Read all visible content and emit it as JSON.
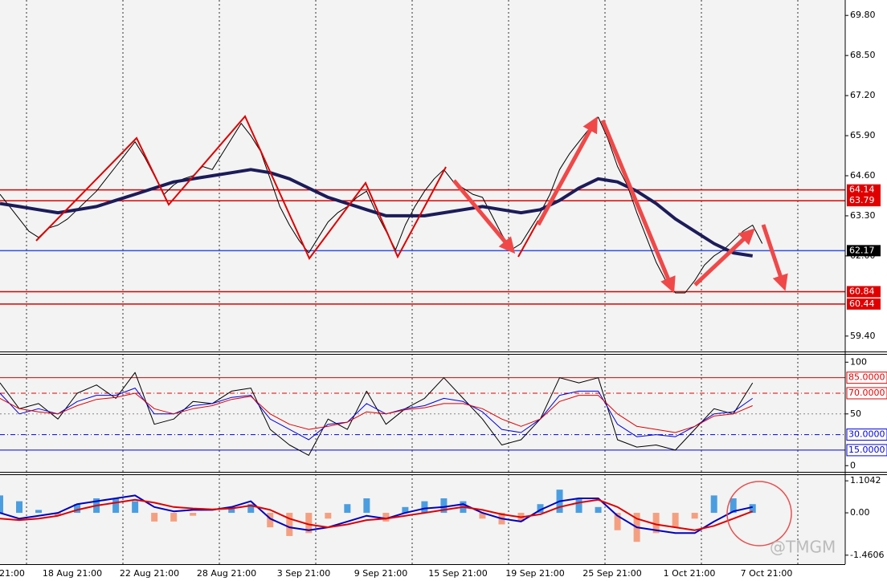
{
  "chart_data": [
    {
      "type": "line",
      "ylim": [
        58.9,
        70.3
      ],
      "xlim": [
        0,
        87.6
      ],
      "yticks": [
        {
          "value": 69.8,
          "label": "69.80"
        },
        {
          "value": 68.5,
          "label": "68.50"
        },
        {
          "value": 67.2,
          "label": "67.20"
        },
        {
          "value": 65.9,
          "label": "65.90"
        },
        {
          "value": 64.6,
          "label": "64.60"
        },
        {
          "value": 63.3,
          "label": "63.30"
        },
        {
          "value": 62,
          "label": "62.00"
        },
        {
          "value": 59.4,
          "label": "59.40"
        }
      ],
      "series": [
        {
          "color": "#000000",
          "width": 1,
          "x": [
            0,
            1,
            2,
            3,
            4,
            5,
            6,
            7,
            8,
            9,
            10,
            11,
            12,
            13,
            14,
            15,
            16,
            17,
            18,
            19,
            20,
            21,
            22,
            23,
            24,
            25,
            26,
            27,
            28,
            29,
            30,
            31,
            32,
            33,
            34,
            35,
            36,
            37,
            38,
            39,
            40,
            41,
            42,
            43,
            44,
            45,
            46,
            47,
            48,
            49,
            50,
            51,
            52,
            53,
            54,
            55,
            56,
            57,
            58,
            59,
            60,
            61,
            62,
            63,
            64,
            65,
            66,
            67,
            68,
            69,
            70,
            71,
            72,
            73,
            74,
            75,
            76,
            77,
            78,
            79
          ],
          "values": [
            64.0,
            63.6,
            63.2,
            62.8,
            62.6,
            62.9,
            63.0,
            63.2,
            63.5,
            63.8,
            64.1,
            64.5,
            64.9,
            65.3,
            65.7,
            65.2,
            64.6,
            64.0,
            64.3,
            64.5,
            64.6,
            64.9,
            64.8,
            65.3,
            65.8,
            66.3,
            65.9,
            65.4,
            64.5,
            63.6,
            63.0,
            62.5,
            62.1,
            62.6,
            63.1,
            63.4,
            63.6,
            63.9,
            64.1,
            63.4,
            62.8,
            62.2,
            63.0,
            63.6,
            64.1,
            64.5,
            64.8,
            64.4,
            64.2,
            64.0,
            63.9,
            63.3,
            62.7,
            62.2,
            62.4,
            62.9,
            63.4,
            64.0,
            64.8,
            65.3,
            65.7,
            66.1,
            66.5,
            65.8,
            64.9,
            64.3,
            63.4,
            62.6,
            61.8,
            61.2,
            60.8,
            60.8,
            61.2,
            61.7,
            62.0,
            62.2,
            62.5,
            62.8,
            63.0,
            62.4
          ]
        },
        {
          "color": "#1c1c5a",
          "width": 4,
          "x": [
            0,
            2,
            4,
            6,
            8,
            10,
            12,
            14,
            16,
            18,
            20,
            22,
            24,
            26,
            28,
            30,
            32,
            34,
            36,
            38,
            40,
            42,
            44,
            46,
            48,
            50,
            52,
            54,
            56,
            58,
            60,
            62,
            64,
            66,
            68,
            70,
            72,
            74,
            76,
            78
          ],
          "values": [
            63.7,
            63.6,
            63.5,
            63.4,
            63.5,
            63.6,
            63.8,
            64.0,
            64.2,
            64.4,
            64.5,
            64.6,
            64.7,
            64.8,
            64.7,
            64.5,
            64.2,
            63.9,
            63.7,
            63.5,
            63.3,
            63.3,
            63.3,
            63.4,
            63.5,
            63.6,
            63.5,
            63.4,
            63.5,
            63.8,
            64.2,
            64.5,
            64.4,
            64.1,
            63.7,
            63.2,
            62.8,
            62.4,
            62.1,
            62.0
          ]
        }
      ],
      "levels": [
        {
          "value": 64.14,
          "color": "#e00000",
          "box": "#e00000"
        },
        {
          "value": 63.79,
          "color": "#e00000",
          "box": "#e00000"
        },
        {
          "value": 62.17,
          "color": "#3050e0",
          "box": "#000000"
        },
        {
          "value": 60.84,
          "color": "#e00000",
          "box": "#e00000"
        },
        {
          "value": 60.44,
          "color": "#e00000",
          "box": "#e00000"
        }
      ]
    },
    {
      "type": "line",
      "ylim": [
        -6,
        108
      ],
      "xlim": [
        0,
        87.6
      ],
      "yticks": [
        100,
        50,
        0
      ],
      "x": [
        0,
        2,
        4,
        6,
        8,
        10,
        12,
        14,
        16,
        18,
        20,
        22,
        24,
        26,
        28,
        30,
        32,
        34,
        36,
        38,
        40,
        42,
        44,
        46,
        48,
        50,
        52,
        54,
        56,
        58,
        60,
        62,
        64,
        66,
        68,
        70,
        72,
        74,
        76,
        78
      ],
      "series": [
        {
          "color": "#000000",
          "width": 1,
          "values": [
            80,
            55,
            60,
            45,
            70,
            78,
            65,
            90,
            40,
            45,
            62,
            60,
            72,
            75,
            35,
            20,
            10,
            45,
            35,
            72,
            40,
            55,
            65,
            85,
            65,
            45,
            20,
            25,
            45,
            85,
            80,
            85,
            25,
            18,
            20,
            15,
            35,
            55,
            50,
            80
          ]
        },
        {
          "color": "#0000e0",
          "width": 1,
          "values": [
            70,
            50,
            55,
            50,
            62,
            68,
            68,
            75,
            50,
            50,
            58,
            60,
            66,
            68,
            45,
            35,
            25,
            40,
            42,
            60,
            50,
            55,
            58,
            65,
            62,
            52,
            35,
            32,
            45,
            68,
            72,
            72,
            40,
            28,
            30,
            28,
            38,
            50,
            52,
            65
          ]
        },
        {
          "color": "#e00000",
          "width": 1,
          "values": [
            65,
            55,
            52,
            50,
            58,
            64,
            66,
            70,
            55,
            50,
            55,
            58,
            64,
            67,
            50,
            40,
            35,
            38,
            42,
            52,
            50,
            54,
            56,
            60,
            60,
            55,
            45,
            38,
            45,
            62,
            68,
            68,
            50,
            38,
            35,
            32,
            38,
            48,
            50,
            58
          ]
        }
      ],
      "levels": [
        {
          "value": 85,
          "label": "85.0000",
          "color": "#e00000",
          "dash": ""
        },
        {
          "value": 70,
          "label": "70.0000",
          "color": "#e00000",
          "dash": "6 3 1 3"
        },
        {
          "value": 30,
          "label": "30.0000",
          "color": "#0000e0",
          "dash": "6 3 1 3"
        },
        {
          "value": 15,
          "label": "15.0000",
          "color": "#0000e0",
          "dash": ""
        }
      ]
    },
    {
      "type": "macd",
      "ylim": [
        -1.77,
        1.33
      ],
      "xlim": [
        0,
        87.6
      ],
      "yticks": [
        1.1042,
        {
          "value": 0,
          "label": "0.00"
        },
        -1.4606
      ],
      "x": [
        0,
        2,
        4,
        6,
        8,
        10,
        12,
        14,
        16,
        18,
        20,
        22,
        24,
        26,
        28,
        30,
        32,
        34,
        36,
        38,
        40,
        42,
        44,
        46,
        48,
        50,
        52,
        54,
        56,
        58,
        60,
        62,
        64,
        66,
        68,
        70,
        72,
        74,
        76,
        78
      ],
      "histogram": {
        "color_up": "#4a9ee0",
        "color_down": "#f4a080",
        "values": [
          0.6,
          0.4,
          0.1,
          -0.1,
          0.3,
          0.5,
          0.5,
          0.4,
          -0.3,
          -0.3,
          -0.1,
          0.0,
          0.2,
          0.3,
          -0.5,
          -0.8,
          -0.7,
          -0.2,
          0.3,
          0.5,
          -0.3,
          0.2,
          0.4,
          0.5,
          0.4,
          -0.2,
          -0.4,
          -0.3,
          0.3,
          0.8,
          0.5,
          0.2,
          -0.6,
          -1.0,
          -0.7,
          -0.5,
          -0.2,
          0.6,
          0.5,
          0.3
        ]
      },
      "series": [
        {
          "color": "#0000c0",
          "width": 2,
          "values": [
            0.0,
            -0.2,
            -0.1,
            0.0,
            0.3,
            0.4,
            0.5,
            0.6,
            0.2,
            0.05,
            0.1,
            0.1,
            0.2,
            0.4,
            -0.2,
            -0.5,
            -0.6,
            -0.5,
            -0.3,
            -0.1,
            -0.2,
            0.0,
            0.15,
            0.2,
            0.3,
            0.0,
            -0.2,
            -0.3,
            0.1,
            0.4,
            0.5,
            0.5,
            -0.1,
            -0.5,
            -0.6,
            -0.7,
            -0.7,
            -0.3,
            0.05,
            0.2
          ]
        },
        {
          "color": "#e00000",
          "width": 2,
          "values": [
            -0.2,
            -0.25,
            -0.2,
            -0.1,
            0.1,
            0.25,
            0.35,
            0.45,
            0.35,
            0.2,
            0.15,
            0.12,
            0.15,
            0.25,
            0.1,
            -0.2,
            -0.4,
            -0.5,
            -0.4,
            -0.25,
            -0.2,
            -0.1,
            0.0,
            0.1,
            0.2,
            0.1,
            -0.05,
            -0.15,
            -0.05,
            0.2,
            0.35,
            0.45,
            0.2,
            -0.2,
            -0.4,
            -0.5,
            -0.6,
            -0.45,
            -0.2,
            0.05
          ]
        }
      ]
    }
  ],
  "x_labels": [
    "21:00",
    "18 Aug 21:00",
    "22 Aug 21:00",
    "28 Aug 21:00",
    "3 Sep 21:00",
    "9 Sep 21:00",
    "15 Sep 21:00",
    "19 Sep 21:00",
    "25 Sep 21:00",
    "1 Oct 21:00",
    "7 Oct 21:00"
  ],
  "watermark": "@TMGM"
}
